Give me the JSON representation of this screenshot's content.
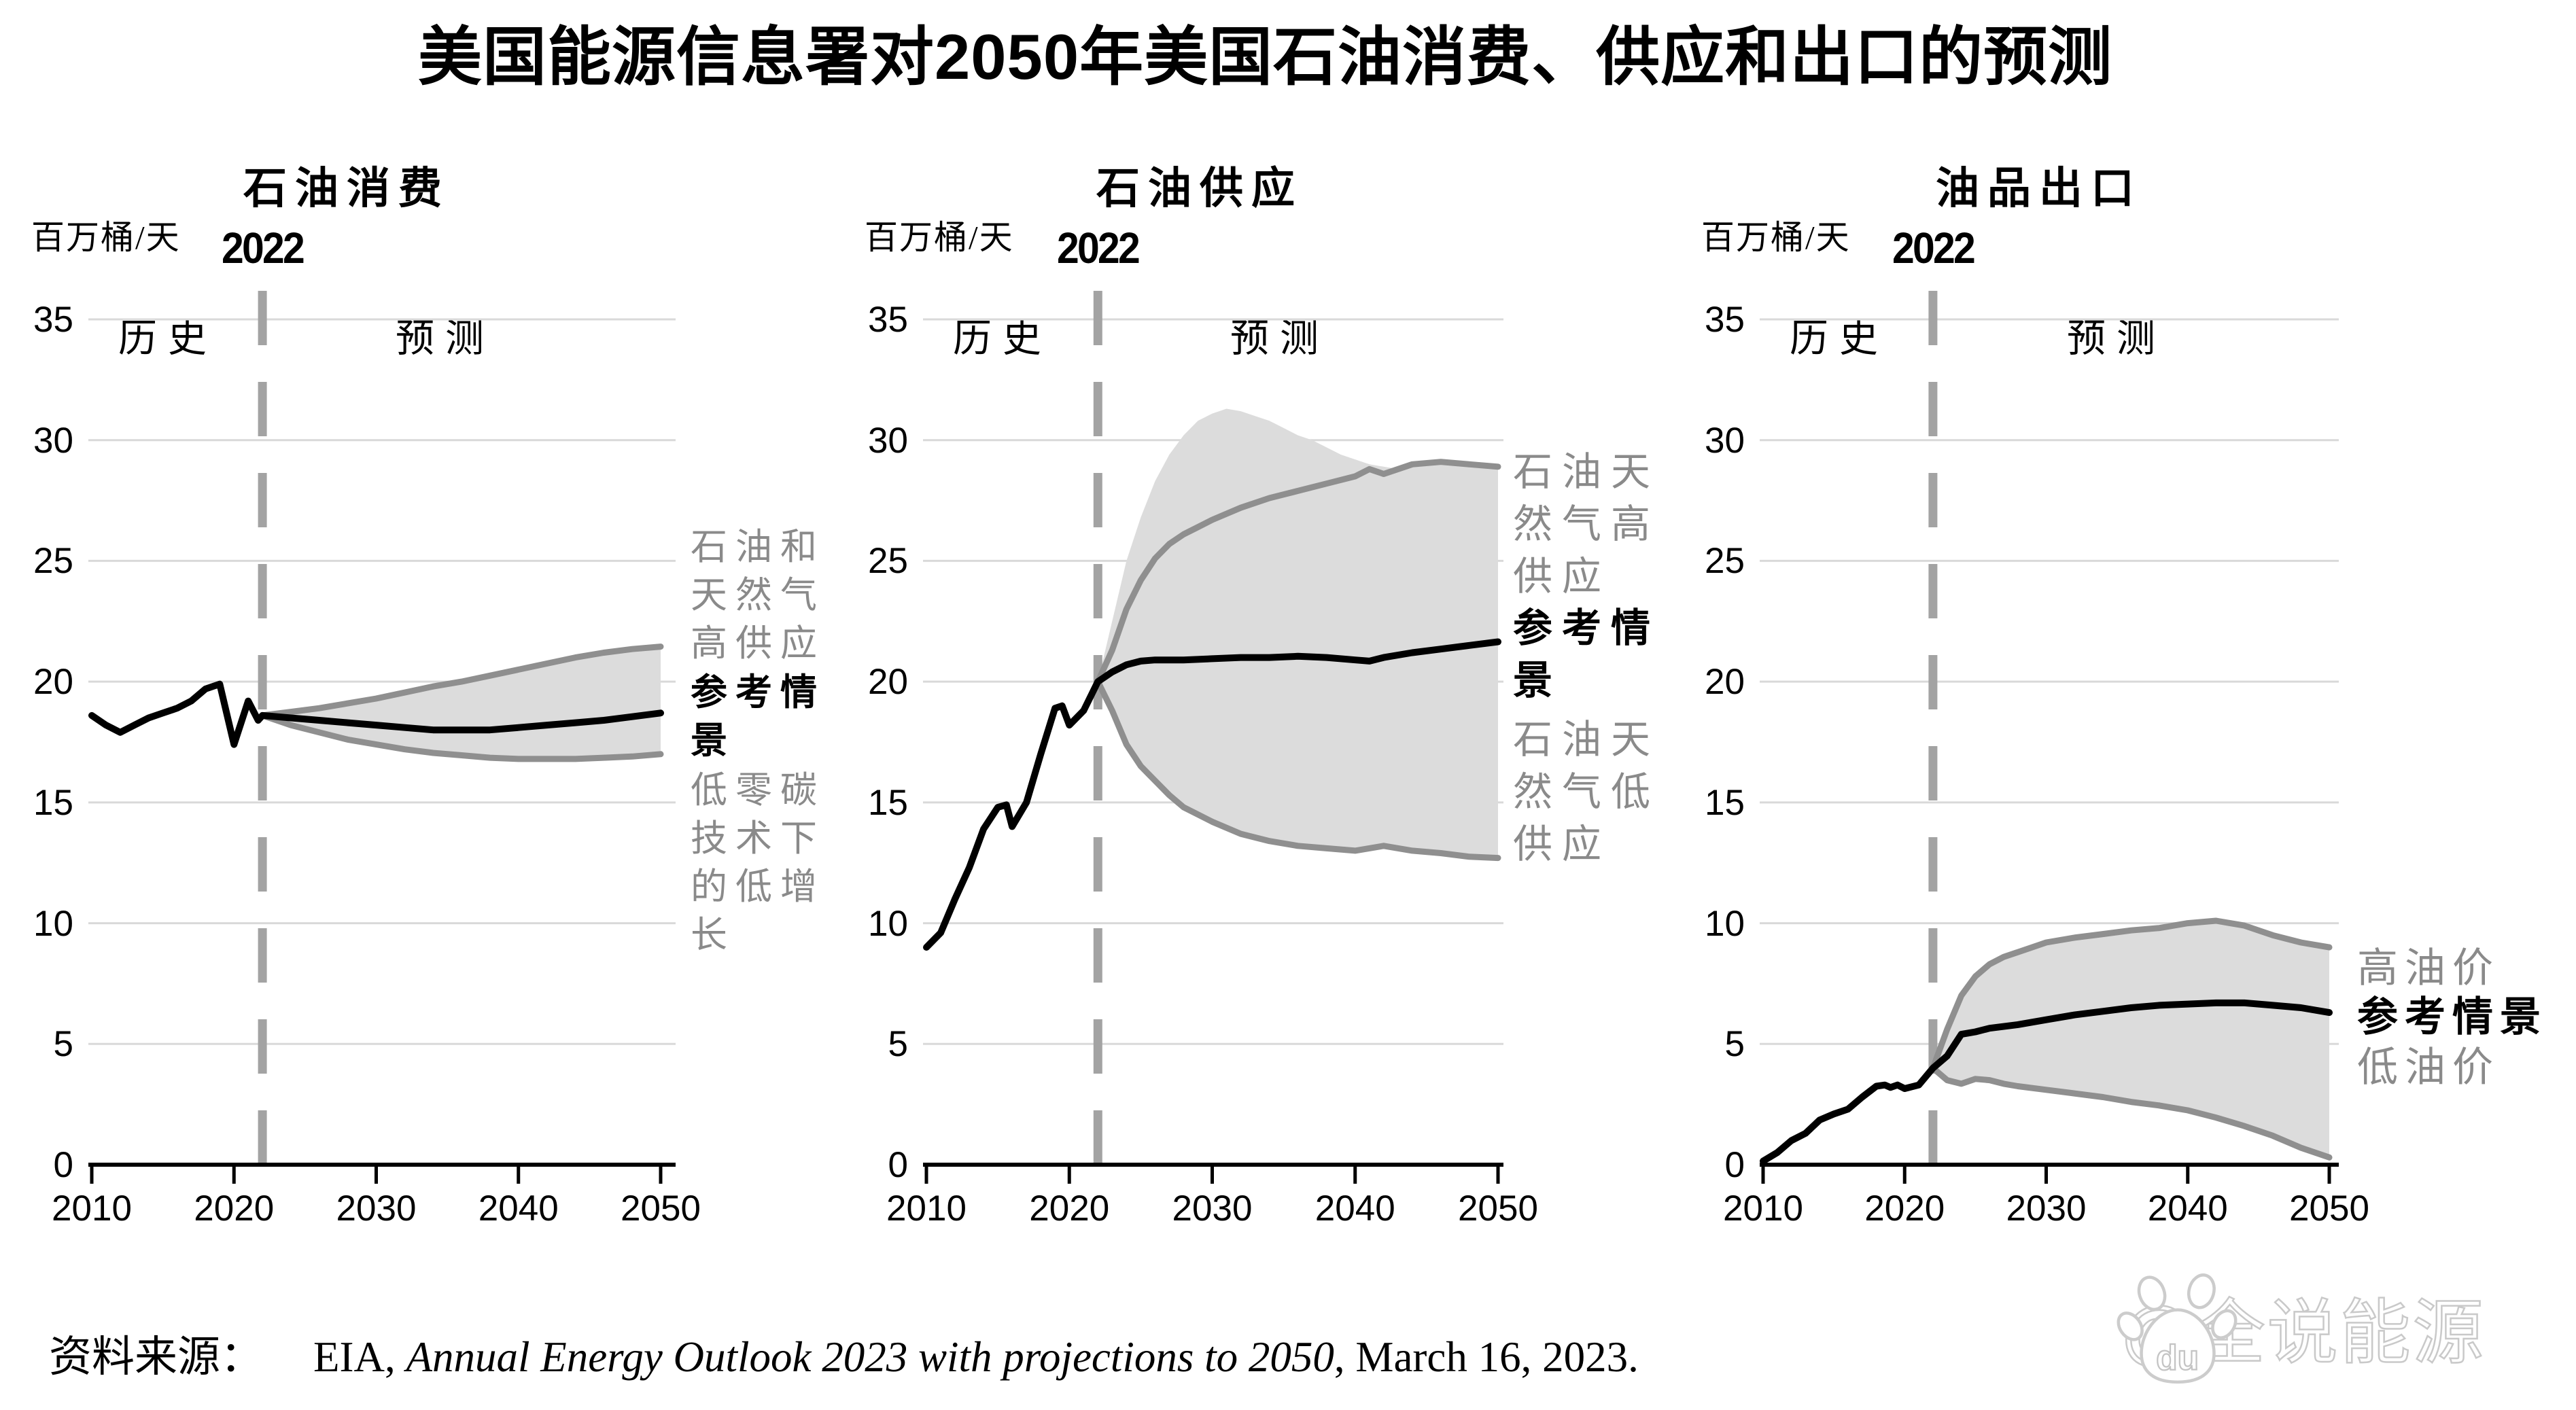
{
  "title": "美国能源信息署对2050年美国石油消费、供应和出口的预测",
  "source": {
    "prefix": "资料来源：",
    "agency": "EIA, ",
    "report_italic": "Annual Energy Outlook 2023 with projections to 2050",
    "suffix": ", March 16, 2023."
  },
  "watermark": {
    "logo_name": "baidu-paw-logo",
    "logo_text": "du",
    "handle": "@全说能源"
  },
  "colors": {
    "grid": "#d9d9d9",
    "axis": "#000000",
    "dashed_divider": "#a3a3a3",
    "band_fill": "#dcdcdc",
    "line_black": "#000000",
    "line_gray": "#8f8f8f",
    "annotation_gray": "#8a8a8a",
    "text": "#000000",
    "watermark_stroke": "#c9c9c9"
  },
  "chart_data": {
    "type": "line",
    "y_axis": {
      "unit": "百万桶/天",
      "min": 0,
      "max": 35,
      "ticks": [
        35,
        30,
        25,
        20,
        15,
        10,
        5,
        0
      ]
    },
    "x_axis": {
      "min": 2010,
      "max": 2050,
      "ticks": [
        2010,
        2020,
        2030,
        2040,
        2050
      ]
    },
    "divider_year": 2022,
    "divider_label": "2022",
    "history_label": "历史",
    "forecast_label": "预测",
    "panels": [
      {
        "id": "oil-consumption",
        "title": "石油消费",
        "annotations": [
          {
            "text": "石油和\n天然气\n高供应",
            "tone": "gray"
          },
          {
            "text": "参考情\n景",
            "tone": "black"
          },
          {
            "text": "低零碳\n技术下\n的低增\n长",
            "tone": "gray"
          }
        ],
        "series": {
          "history": [
            [
              2010,
              18.6
            ],
            [
              2011,
              18.2
            ],
            [
              2012,
              17.9
            ],
            [
              2013,
              18.2
            ],
            [
              2014,
              18.5
            ],
            [
              2015,
              18.7
            ],
            [
              2016,
              18.9
            ],
            [
              2017,
              19.2
            ],
            [
              2018,
              19.7
            ],
            [
              2019,
              19.9
            ],
            [
              2020,
              17.4
            ],
            [
              2021,
              19.2
            ],
            [
              2021.7,
              18.4
            ],
            [
              2022,
              18.6
            ]
          ],
          "reference": [
            [
              2022,
              18.6
            ],
            [
              2024,
              18.5
            ],
            [
              2026,
              18.4
            ],
            [
              2028,
              18.3
            ],
            [
              2030,
              18.2
            ],
            [
              2032,
              18.1
            ],
            [
              2034,
              18.0
            ],
            [
              2036,
              18.0
            ],
            [
              2038,
              18.0
            ],
            [
              2040,
              18.1
            ],
            [
              2042,
              18.2
            ],
            [
              2044,
              18.3
            ],
            [
              2046,
              18.4
            ],
            [
              2048,
              18.55
            ],
            [
              2050,
              18.7
            ]
          ],
          "high": [
            [
              2022,
              18.6
            ],
            [
              2024,
              18.75
            ],
            [
              2026,
              18.9
            ],
            [
              2028,
              19.1
            ],
            [
              2030,
              19.3
            ],
            [
              2032,
              19.55
            ],
            [
              2034,
              19.8
            ],
            [
              2036,
              20.0
            ],
            [
              2038,
              20.25
            ],
            [
              2040,
              20.5
            ],
            [
              2042,
              20.75
            ],
            [
              2044,
              21.0
            ],
            [
              2046,
              21.2
            ],
            [
              2048,
              21.35
            ],
            [
              2050,
              21.45
            ]
          ],
          "low": [
            [
              2022,
              18.6
            ],
            [
              2024,
              18.2
            ],
            [
              2026,
              17.9
            ],
            [
              2028,
              17.6
            ],
            [
              2030,
              17.4
            ],
            [
              2032,
              17.2
            ],
            [
              2034,
              17.05
            ],
            [
              2036,
              16.95
            ],
            [
              2038,
              16.85
            ],
            [
              2040,
              16.8
            ],
            [
              2042,
              16.8
            ],
            [
              2044,
              16.8
            ],
            [
              2046,
              16.85
            ],
            [
              2048,
              16.9
            ],
            [
              2050,
              17.0
            ]
          ]
        },
        "band": {
          "upper": "high",
          "lower": "low"
        }
      },
      {
        "id": "oil-supply",
        "title": "石油供应",
        "annotations": [
          {
            "text": "石油天\n然气高\n供应",
            "tone": "gray"
          },
          {
            "text": "参考情\n景",
            "tone": "black"
          },
          {
            "text": "石油天\n然气低\n供应",
            "tone": "gray"
          }
        ],
        "series": {
          "history": [
            [
              2010,
              9.0
            ],
            [
              2011,
              9.6
            ],
            [
              2012,
              11.0
            ],
            [
              2013,
              12.3
            ],
            [
              2014,
              13.9
            ],
            [
              2015,
              14.8
            ],
            [
              2015.6,
              14.9
            ],
            [
              2016,
              14.0
            ],
            [
              2017,
              15.0
            ],
            [
              2018,
              17.0
            ],
            [
              2019,
              18.9
            ],
            [
              2019.5,
              19.0
            ],
            [
              2020,
              18.2
            ],
            [
              2021,
              18.8
            ],
            [
              2022,
              20.0
            ]
          ],
          "reference": [
            [
              2022,
              20.0
            ],
            [
              2023,
              20.4
            ],
            [
              2024,
              20.7
            ],
            [
              2025,
              20.85
            ],
            [
              2026,
              20.9
            ],
            [
              2028,
              20.9
            ],
            [
              2030,
              20.95
            ],
            [
              2032,
              21.0
            ],
            [
              2034,
              21.0
            ],
            [
              2036,
              21.05
            ],
            [
              2038,
              21.0
            ],
            [
              2040,
              20.9
            ],
            [
              2041,
              20.85
            ],
            [
              2042,
              21.0
            ],
            [
              2044,
              21.2
            ],
            [
              2046,
              21.35
            ],
            [
              2048,
              21.5
            ],
            [
              2050,
              21.65
            ]
          ],
          "high": [
            [
              2022,
              20.0
            ],
            [
              2023,
              21.3
            ],
            [
              2024,
              23.0
            ],
            [
              2025,
              24.2
            ],
            [
              2026,
              25.1
            ],
            [
              2027,
              25.7
            ],
            [
              2028,
              26.1
            ],
            [
              2029,
              26.4
            ],
            [
              2030,
              26.7
            ],
            [
              2032,
              27.2
            ],
            [
              2034,
              27.6
            ],
            [
              2036,
              27.9
            ],
            [
              2038,
              28.2
            ],
            [
              2040,
              28.5
            ],
            [
              2041,
              28.8
            ],
            [
              2042,
              28.6
            ],
            [
              2044,
              29.0
            ],
            [
              2046,
              29.1
            ],
            [
              2048,
              29.0
            ],
            [
              2050,
              28.9
            ]
          ],
          "low": [
            [
              2022,
              20.0
            ],
            [
              2023,
              18.8
            ],
            [
              2024,
              17.4
            ],
            [
              2025,
              16.5
            ],
            [
              2026,
              15.9
            ],
            [
              2027,
              15.3
            ],
            [
              2028,
              14.8
            ],
            [
              2029,
              14.5
            ],
            [
              2030,
              14.2
            ],
            [
              2032,
              13.7
            ],
            [
              2034,
              13.4
            ],
            [
              2036,
              13.2
            ],
            [
              2038,
              13.1
            ],
            [
              2040,
              13.0
            ],
            [
              2042,
              13.2
            ],
            [
              2044,
              13.0
            ],
            [
              2046,
              12.9
            ],
            [
              2048,
              12.75
            ],
            [
              2050,
              12.7
            ]
          ],
          "band_top": [
            [
              2022,
              20.0
            ],
            [
              2023,
              22.5
            ],
            [
              2024,
              25.0
            ],
            [
              2025,
              26.8
            ],
            [
              2026,
              28.3
            ],
            [
              2027,
              29.4
            ],
            [
              2028,
              30.2
            ],
            [
              2029,
              30.8
            ],
            [
              2030,
              31.1
            ],
            [
              2031,
              31.3
            ],
            [
              2032,
              31.2
            ],
            [
              2033,
              31.0
            ],
            [
              2034,
              30.8
            ],
            [
              2035,
              30.5
            ],
            [
              2036,
              30.2
            ],
            [
              2037,
              30.0
            ],
            [
              2038,
              29.7
            ],
            [
              2039,
              29.4
            ],
            [
              2040,
              29.2
            ],
            [
              2041,
              29.0
            ],
            [
              2042,
              28.9
            ],
            [
              2043,
              28.8
            ],
            [
              2044,
              29.0
            ],
            [
              2046,
              29.1
            ],
            [
              2048,
              29.0
            ],
            [
              2050,
              28.9
            ]
          ]
        },
        "band": {
          "upper": "band_top",
          "lower": "low"
        }
      },
      {
        "id": "oil-product-exports",
        "title": "油品出口",
        "annotations": [
          {
            "text": "高油价",
            "tone": "gray"
          },
          {
            "text": "参考情景",
            "tone": "black"
          },
          {
            "text": "低油价",
            "tone": "gray"
          }
        ],
        "series": {
          "history": [
            [
              2010,
              0.15
            ],
            [
              2011,
              0.5
            ],
            [
              2012,
              1.0
            ],
            [
              2013,
              1.3
            ],
            [
              2014,
              1.85
            ],
            [
              2015,
              2.1
            ],
            [
              2016,
              2.3
            ],
            [
              2017,
              2.8
            ],
            [
              2018,
              3.25
            ],
            [
              2018.6,
              3.3
            ],
            [
              2019,
              3.2
            ],
            [
              2019.5,
              3.3
            ],
            [
              2020,
              3.15
            ],
            [
              2021,
              3.3
            ],
            [
              2022,
              4.0
            ]
          ],
          "reference": [
            [
              2022,
              4.0
            ],
            [
              2023,
              4.5
            ],
            [
              2024,
              5.4
            ],
            [
              2025,
              5.5
            ],
            [
              2026,
              5.65
            ],
            [
              2028,
              5.8
            ],
            [
              2030,
              6.0
            ],
            [
              2032,
              6.2
            ],
            [
              2034,
              6.35
            ],
            [
              2036,
              6.5
            ],
            [
              2038,
              6.6
            ],
            [
              2040,
              6.65
            ],
            [
              2042,
              6.7
            ],
            [
              2044,
              6.7
            ],
            [
              2046,
              6.6
            ],
            [
              2048,
              6.5
            ],
            [
              2050,
              6.3
            ]
          ],
          "high": [
            [
              2022,
              4.0
            ],
            [
              2023,
              5.6
            ],
            [
              2024,
              7.0
            ],
            [
              2025,
              7.8
            ],
            [
              2026,
              8.3
            ],
            [
              2027,
              8.6
            ],
            [
              2028,
              8.8
            ],
            [
              2029,
              9.0
            ],
            [
              2030,
              9.2
            ],
            [
              2032,
              9.4
            ],
            [
              2034,
              9.55
            ],
            [
              2036,
              9.7
            ],
            [
              2038,
              9.8
            ],
            [
              2040,
              10.0
            ],
            [
              2042,
              10.1
            ],
            [
              2043,
              10.0
            ],
            [
              2044,
              9.9
            ],
            [
              2046,
              9.5
            ],
            [
              2048,
              9.2
            ],
            [
              2050,
              9.0
            ]
          ],
          "low": [
            [
              2022,
              4.0
            ],
            [
              2023,
              3.5
            ],
            [
              2024,
              3.35
            ],
            [
              2025,
              3.55
            ],
            [
              2026,
              3.5
            ],
            [
              2027,
              3.35
            ],
            [
              2028,
              3.25
            ],
            [
              2030,
              3.1
            ],
            [
              2032,
              2.95
            ],
            [
              2034,
              2.8
            ],
            [
              2036,
              2.6
            ],
            [
              2038,
              2.45
            ],
            [
              2040,
              2.25
            ],
            [
              2042,
              1.95
            ],
            [
              2044,
              1.6
            ],
            [
              2046,
              1.2
            ],
            [
              2048,
              0.7
            ],
            [
              2050,
              0.3
            ]
          ]
        },
        "band": {
          "upper": "high",
          "lower": "low"
        }
      }
    ]
  }
}
